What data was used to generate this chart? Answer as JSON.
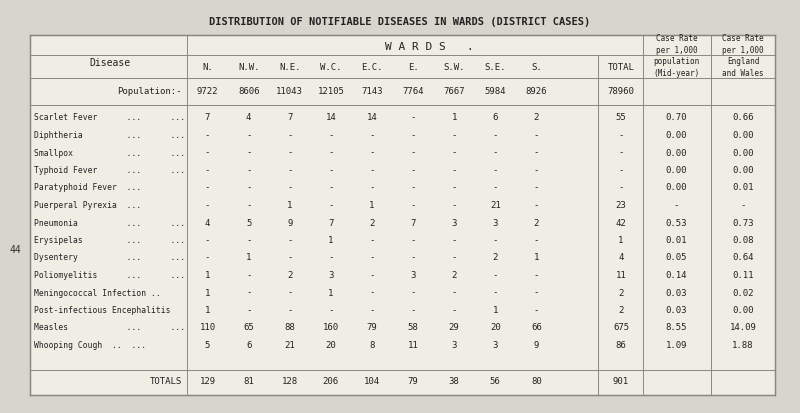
{
  "title": "DISTRIBUTION OF NOTIFIABLE DISEASES IN WARDS (DISTRICT CASES)",
  "bg_color": "#d8d5cc",
  "table_bg": "#e8e5dc",
  "header_wards": "W A R D S",
  "col_headers": [
    "N.",
    "N.W.",
    "N.E.",
    "W.C.",
    "E.C.",
    "E.",
    "S.W.",
    "S.E.",
    "S.",
    "TOTAL"
  ],
  "extra_col_headers": [
    "Case Rate\nper 1,000\npopulation\n(Mid-year)",
    "Case Rate\nper 1,000\nEngland\nand Wales"
  ],
  "population_label": "Population:-",
  "population_values": [
    "9722",
    "8606",
    "11043",
    "12105",
    "7143",
    "7764",
    "7667",
    "5984",
    "8926",
    "78960"
  ],
  "diseases": [
    "Scarlet Fever      ...      ...",
    "Diphtheria         ...      ...",
    "Smallpox           ...      ...",
    "Typhoid Fever      ...      ...",
    "Paratyphoid Fever  ...",
    "Puerperal Pyrexia  ...",
    "Pneumonia          ...      ...",
    "Erysipelas         ...      ...",
    "Dysentery          ...      ...",
    "Poliomyelitis      ...      ...",
    "Meningococcal Infection ..",
    "Post-infectious Encephalitis",
    "Measles            ...      ...",
    "Whooping Cough  ..  ..."
  ],
  "ward_data": [
    [
      "7",
      "4",
      "7",
      "14",
      "14",
      "-",
      "1",
      "6",
      "2",
      "55"
    ],
    [
      "-",
      "-",
      "-",
      "-",
      "-",
      "-",
      "-",
      "-",
      "-",
      "-"
    ],
    [
      "-",
      "-",
      "-",
      "-",
      "-",
      "-",
      "-",
      "-",
      "-",
      "-"
    ],
    [
      "-",
      "-",
      "-",
      "-",
      "-",
      "-",
      "-",
      "-",
      "-",
      "-"
    ],
    [
      "-",
      "-",
      "-",
      "-",
      "-",
      "-",
      "-",
      "-",
      "-",
      "-"
    ],
    [
      "-",
      "-",
      "1",
      "-",
      "1",
      "-",
      "-",
      "21",
      "-",
      "23"
    ],
    [
      "4",
      "5",
      "9",
      "7",
      "2",
      "7",
      "3",
      "3",
      "2",
      "42"
    ],
    [
      "-",
      "-",
      "-",
      "1",
      "-",
      "-",
      "-",
      "-",
      "-",
      "1"
    ],
    [
      "-",
      "1",
      "-",
      "-",
      "-",
      "-",
      "-",
      "2",
      "1",
      "4"
    ],
    [
      "1",
      "-",
      "2",
      "3",
      "-",
      "3",
      "2",
      "-",
      "-",
      "11"
    ],
    [
      "1",
      "-",
      "-",
      "1",
      "-",
      "-",
      "-",
      "-",
      "-",
      "2"
    ],
    [
      "1",
      "-",
      "-",
      "-",
      "-",
      "-",
      "-",
      "1",
      "-",
      "2"
    ],
    [
      "110",
      "65",
      "88",
      "160",
      "79",
      "58",
      "29",
      "20",
      "66",
      "675"
    ],
    [
      "5",
      "6",
      "21",
      "20",
      "8",
      "11",
      "3",
      "3",
      "9",
      "86"
    ]
  ],
  "case_rate_midyear": [
    "0.70",
    "0.00",
    "0.00",
    "0.00",
    "0.00",
    "-",
    "0.53",
    "0.01",
    "0.05",
    "0.14",
    "0.03",
    "0.03",
    "8.55",
    "1.09"
  ],
  "case_rate_ew": [
    "0.66",
    "0.00",
    "0.00",
    "0.00",
    "0.01",
    "-",
    "0.73",
    "0.08",
    "0.64",
    "0.11",
    "0.02",
    "0.00",
    "14.09",
    "1.88"
  ],
  "totals_label": "TOTALS",
  "totals_values": [
    "129",
    "81",
    "128",
    "206",
    "104",
    "79",
    "38",
    "56",
    "80",
    "901"
  ],
  "left_margin_number": "44",
  "font_family": "monospace"
}
